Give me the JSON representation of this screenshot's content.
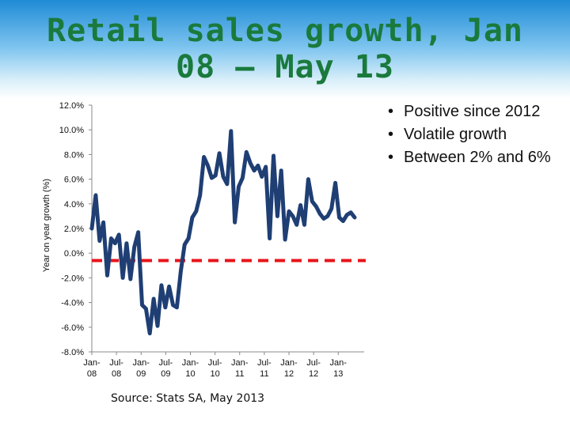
{
  "slide": {
    "title": "Retail sales growth, Jan 08 – May 13",
    "bullets": [
      "Positive since 2012",
      "Volatile growth",
      "Between 2% and 6%"
    ],
    "source": "Source: Stats SA, May 2013"
  },
  "colors": {
    "title": "#1a7a3c",
    "series_line": "#1f3f74",
    "reference_line": "#e8141b",
    "axis": "#888888"
  },
  "chart_data": {
    "type": "line",
    "title": "",
    "ylabel": "Year on year growth (%)",
    "xlabel": "",
    "ylim": [
      -8,
      12
    ],
    "y_ticks": [
      "12.0%",
      "10.0%",
      "8.0%",
      "6.0%",
      "4.0%",
      "2.0%",
      "0.0%",
      "-2.0%",
      "-4.0%",
      "-6.0%",
      "-8.0%"
    ],
    "y_tick_values": [
      12,
      10,
      8,
      6,
      4,
      2,
      0,
      -2,
      -4,
      -6,
      -8
    ],
    "x_tick_labels": [
      [
        "Jan-",
        "08"
      ],
      [
        "Jul-",
        "08"
      ],
      [
        "Jan-",
        "09"
      ],
      [
        "Jul-",
        "09"
      ],
      [
        "Jan-",
        "10"
      ],
      [
        "Jul-",
        "10"
      ],
      [
        "Jan-",
        "11"
      ],
      [
        "Jul-",
        "11"
      ],
      [
        "Jan-",
        "12"
      ],
      [
        "Jul-",
        "12"
      ],
      [
        "Jan-",
        "13"
      ]
    ],
    "x_tick_positions": [
      0,
      6,
      12,
      18,
      24,
      30,
      36,
      42,
      48,
      54,
      60
    ],
    "x_range": [
      0,
      64
    ],
    "grid": false,
    "legend": "none",
    "series": [
      {
        "values": [
          2.0,
          4.7,
          1.0,
          2.5,
          -1.8,
          1.2,
          0.8,
          1.5,
          -2.0,
          0.8,
          -2.1,
          0.5,
          1.7,
          -4.2,
          -4.5,
          -6.5,
          -3.7,
          -5.9,
          -2.6,
          -4.4,
          -2.7,
          -4.2,
          -4.4,
          -1.5,
          0.7,
          1.2,
          2.9,
          3.4,
          4.7,
          7.8,
          7.1,
          6.1,
          6.3,
          8.1,
          6.2,
          5.6,
          9.9,
          2.5,
          5.4,
          6.1,
          8.2,
          7.3,
          6.7,
          7.1,
          6.2,
          7.0,
          1.2,
          7.9,
          3.0,
          6.7,
          1.1,
          3.4,
          3.0,
          2.3,
          3.9,
          2.3,
          6.0,
          4.2,
          3.8,
          3.2,
          2.8,
          3.0,
          3.6,
          5.7,
          2.9,
          2.6,
          3.1,
          3.3,
          2.9
        ],
        "values_note_removed": true
      }
    ],
    "reference_line": {
      "value": -0.6,
      "style": "dashed"
    }
  }
}
